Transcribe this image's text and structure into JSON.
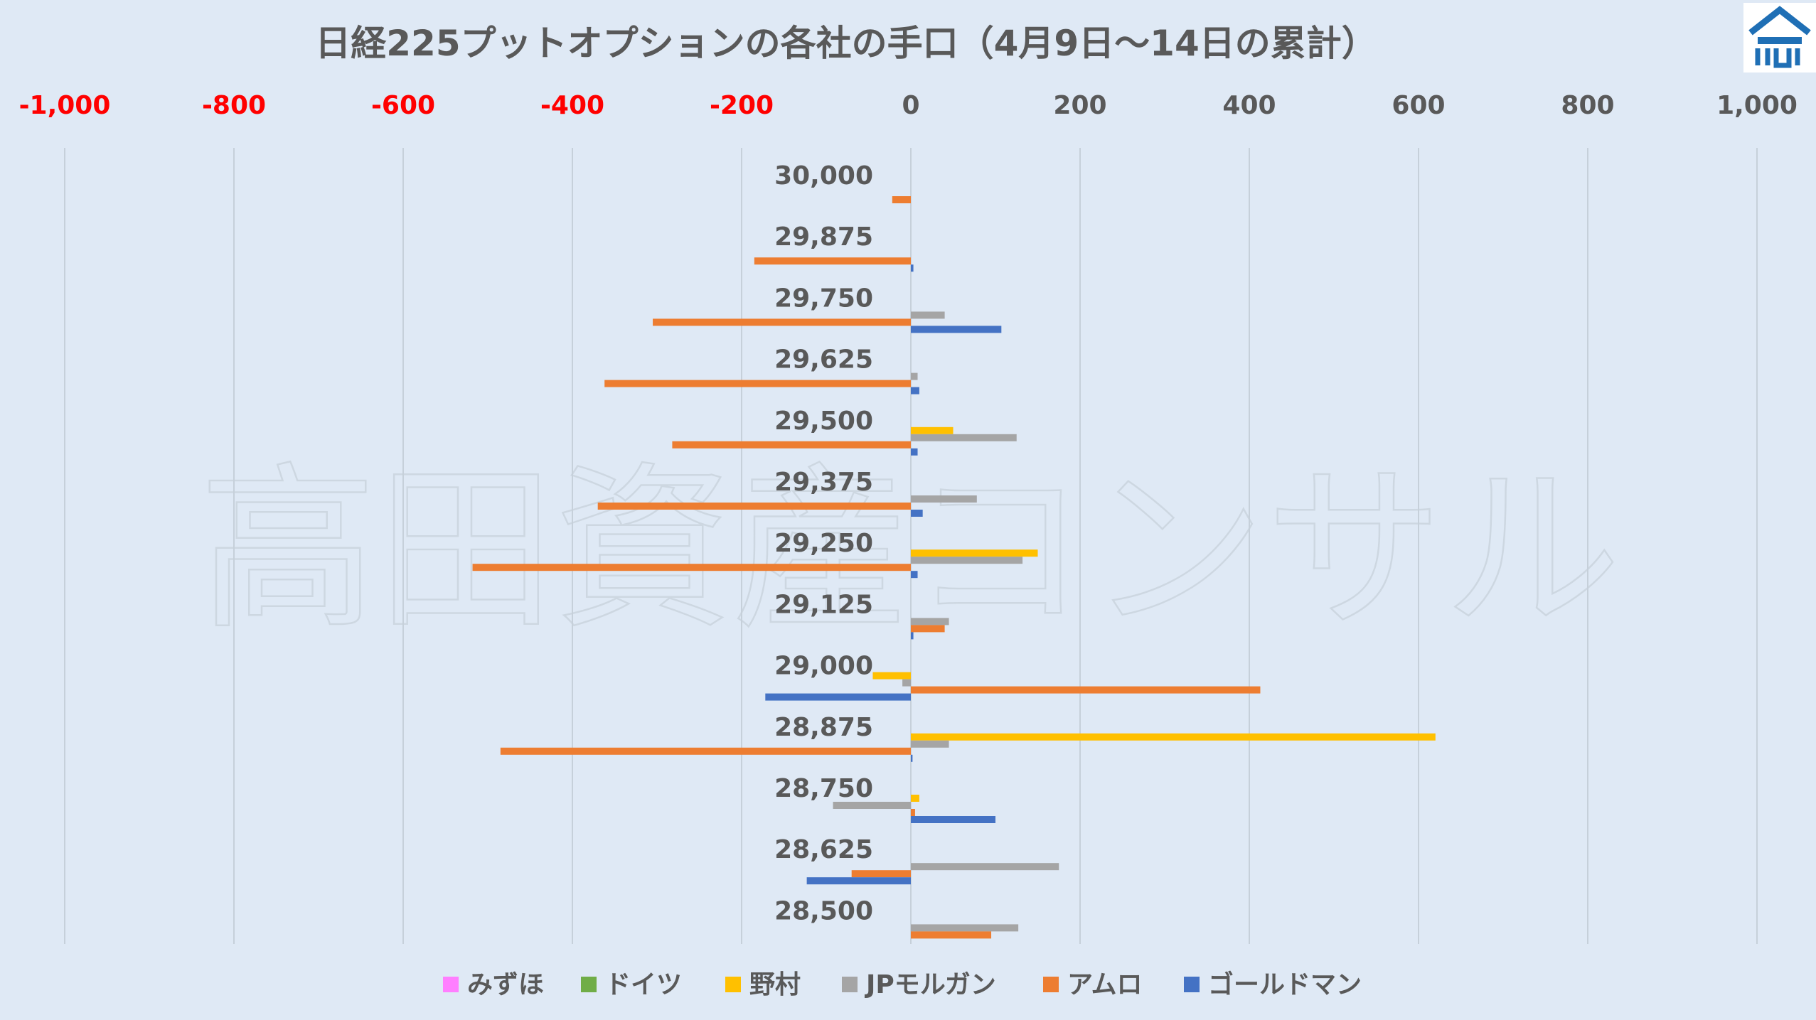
{
  "watermark": "高田資産コンサル",
  "colors": {
    "background": "#dfe9f5",
    "negative_tick": "#ff0000",
    "positive_tick": "#595959",
    "gridline": "#c6d0da",
    "logo_blue": "#1f6fb5"
  },
  "logo": {
    "icon": "takata-house-logo-icon"
  },
  "chart_data": {
    "type": "bar",
    "orientation": "horizontal",
    "title": "日経225プットオプションの各社の手口（4月9日～14日の累計）",
    "xlim": [
      -1000,
      1000
    ],
    "xticks": [
      -1000,
      -800,
      -600,
      -400,
      -200,
      0,
      200,
      400,
      600,
      800,
      1000
    ],
    "xtick_labels": [
      "-1,000",
      "-800",
      "-600",
      "-400",
      "-200",
      "0",
      "200",
      "400",
      "600",
      "800",
      "1,000"
    ],
    "xaxis_position": "top",
    "grid": true,
    "legend_position": "bottom",
    "categories": [
      "30,000",
      "29,875",
      "29,750",
      "29,625",
      "29,500",
      "29,375",
      "29,250",
      "29,125",
      "29,000",
      "28,875",
      "28,750",
      "28,625",
      "28,500"
    ],
    "series": [
      {
        "name": "みずほ",
        "color": "#ff7fff",
        "values": [
          0,
          0,
          0,
          0,
          0,
          0,
          0,
          0,
          0,
          0,
          0,
          0,
          0
        ]
      },
      {
        "name": "ドイツ",
        "color": "#70ad47",
        "values": [
          0,
          0,
          0,
          0,
          0,
          0,
          0,
          0,
          0,
          0,
          0,
          0,
          0
        ]
      },
      {
        "name": "野村",
        "color": "#ffc000",
        "values": [
          0,
          0,
          0,
          0,
          50,
          0,
          150,
          0,
          -45,
          620,
          10,
          0,
          0
        ]
      },
      {
        "name": "JPモルガン",
        "color": "#a5a5a5",
        "values": [
          0,
          0,
          40,
          8,
          125,
          78,
          132,
          45,
          -10,
          45,
          -92,
          175,
          127
        ]
      },
      {
        "name": "アムロ",
        "color": "#ed7d31",
        "values": [
          -22,
          -185,
          -305,
          -362,
          -282,
          -370,
          -518,
          40,
          413,
          -485,
          5,
          -70,
          95
        ]
      },
      {
        "name": "ゴールドマン",
        "color": "#4472c4",
        "values": [
          0,
          3,
          107,
          10,
          8,
          14,
          8,
          3,
          -172,
          2,
          100,
          -123,
          0
        ]
      }
    ]
  }
}
